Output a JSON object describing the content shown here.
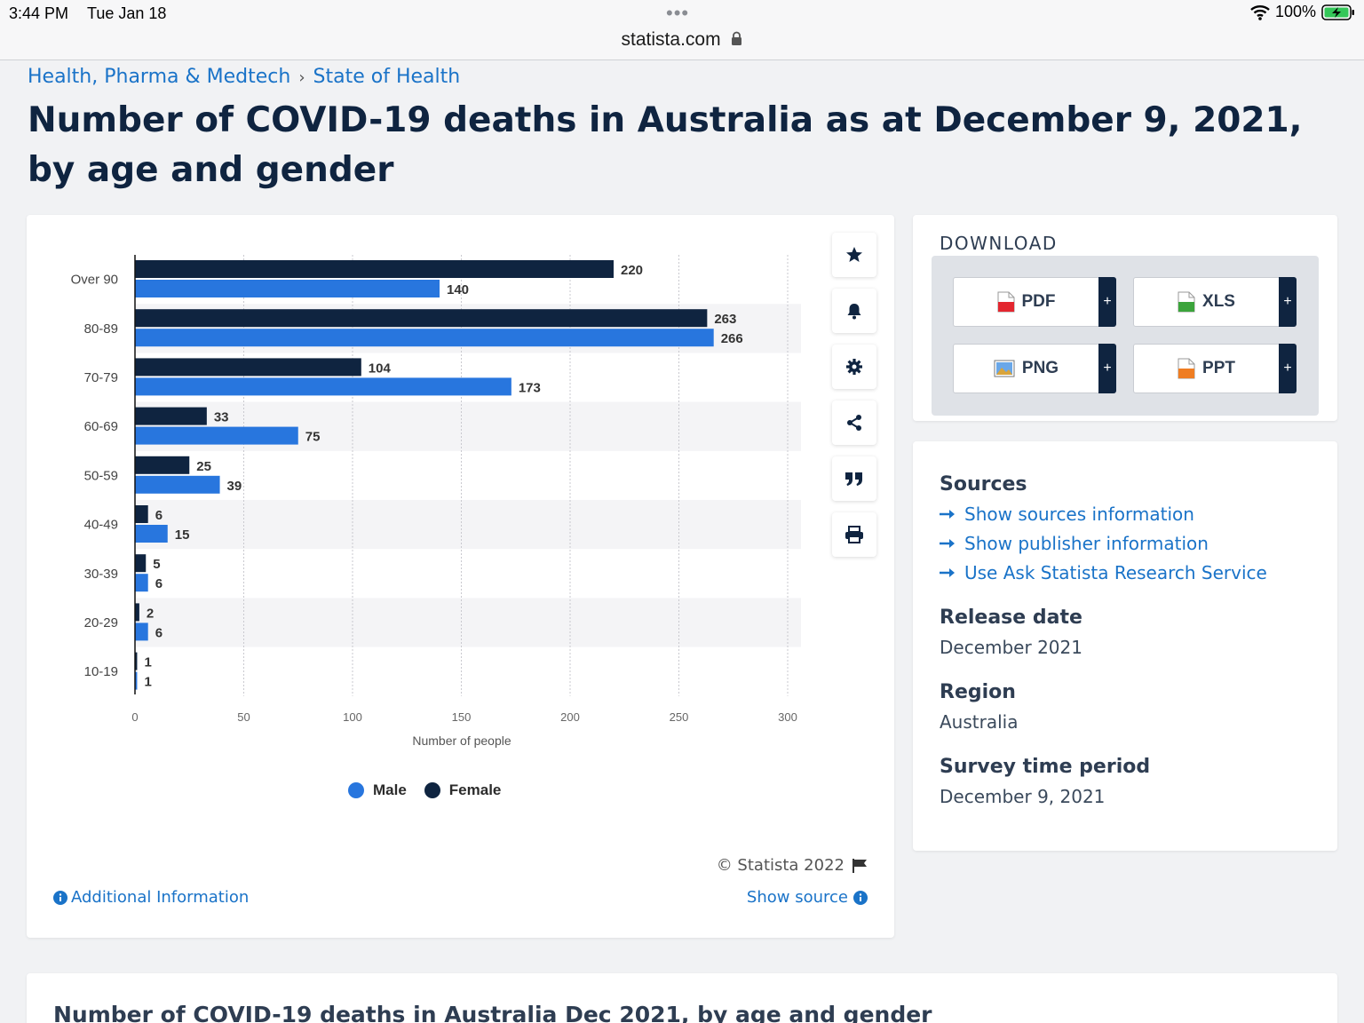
{
  "status_bar": {
    "time": "3:44 PM",
    "date": "Tue Jan 18",
    "battery": "100%",
    "dots": "•••"
  },
  "browser": {
    "url": "statista.com"
  },
  "breadcrumb": {
    "items": [
      "Health, Pharma & Medtech",
      "State of Health"
    ]
  },
  "page": {
    "title": "Number of COVID-19 deaths in Australia as at December 9, 2021, by age and gender"
  },
  "chart_data": {
    "type": "bar",
    "orientation": "horizontal",
    "categories": [
      "Over 90",
      "80-89",
      "70-79",
      "60-69",
      "50-59",
      "40-49",
      "30-39",
      "20-29",
      "10-19"
    ],
    "series": [
      {
        "name": "Female",
        "color": "#0f2440",
        "values": [
          220,
          263,
          104,
          33,
          25,
          6,
          5,
          2,
          1
        ]
      },
      {
        "name": "Male",
        "color": "#2876de",
        "values": [
          140,
          266,
          173,
          75,
          39,
          15,
          6,
          6,
          1
        ]
      }
    ],
    "xlabel": "Number of people",
    "ylabel": "",
    "xlim": [
      0,
      300
    ],
    "xticks": [
      0,
      50,
      100,
      150,
      200,
      250,
      300
    ],
    "grid": true,
    "legend": "bottom",
    "legend_order": [
      "Male",
      "Female"
    ]
  },
  "chart_footer": {
    "copyright": "© Statista 2022",
    "additional_info": "Additional Information",
    "show_source": "Show source"
  },
  "toolbar": {
    "icons": [
      "star-icon",
      "bell-icon",
      "gear-icon",
      "share-icon",
      "quote-icon",
      "print-icon"
    ]
  },
  "download": {
    "title": "DOWNLOAD",
    "buttons": [
      {
        "label": "PDF",
        "icon": "pdf-file-icon",
        "plus": "+"
      },
      {
        "label": "XLS",
        "icon": "xls-file-icon",
        "plus": "+"
      },
      {
        "label": "PNG",
        "icon": "png-file-icon",
        "plus": "+"
      },
      {
        "label": "PPT",
        "icon": "ppt-file-icon",
        "plus": "+"
      }
    ]
  },
  "info": {
    "sources_heading": "Sources",
    "links": [
      "Show sources information",
      "Show publisher information",
      "Use Ask Statista Research Service"
    ],
    "release_heading": "Release date",
    "release_value": "December 2021",
    "region_heading": "Region",
    "region_value": "Australia",
    "survey_heading": "Survey time period",
    "survey_value": "December 9, 2021"
  },
  "bottom": {
    "title": "Number of COVID-19 deaths in Australia Dec 2021, by age and gender"
  }
}
